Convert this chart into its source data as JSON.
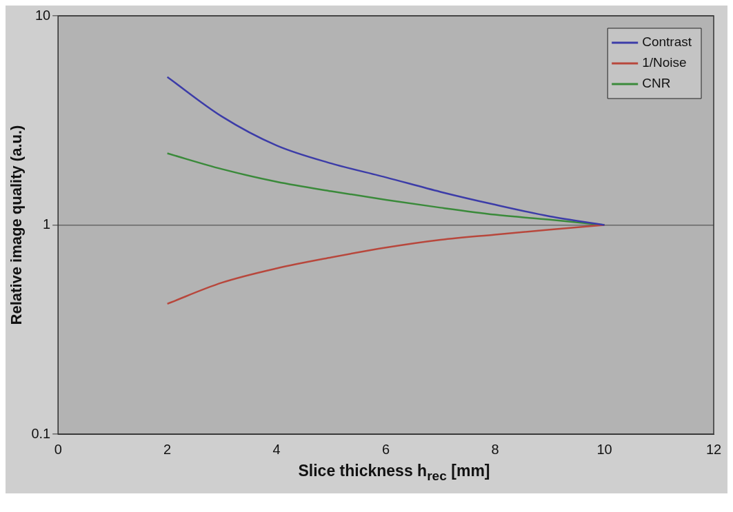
{
  "chart_data": {
    "type": "line",
    "xlabel": "Slice thickness h$_{rec}$ [mm]",
    "ylabel": "Relative image quality (a.u.)",
    "x": [
      2,
      3,
      4,
      5,
      6,
      7,
      8,
      9,
      10
    ],
    "series": [
      {
        "name": "Contrast",
        "color": "#3c3ca8",
        "values": [
          5.1,
          3.3,
          2.4,
          1.97,
          1.69,
          1.44,
          1.25,
          1.1,
          1
        ]
      },
      {
        "name": "1/Noise",
        "color": "#b8473c",
        "values": [
          0.42,
          0.53,
          0.62,
          0.7,
          0.78,
          0.85,
          0.9,
          0.95,
          1
        ]
      },
      {
        "name": "CNR",
        "color": "#3a8a3a",
        "values": [
          2.2,
          1.85,
          1.61,
          1.45,
          1.32,
          1.21,
          1.12,
          1.06,
          1
        ]
      }
    ],
    "xlim": [
      0,
      12
    ],
    "xticks": [
      0,
      2,
      4,
      6,
      8,
      10,
      12
    ],
    "ylim": [
      0.1,
      10
    ],
    "yticks": [
      0.1,
      1,
      10
    ],
    "log": "y",
    "grid": "y",
    "legend": "top right",
    "marker": "none",
    "line_style": "solid"
  }
}
